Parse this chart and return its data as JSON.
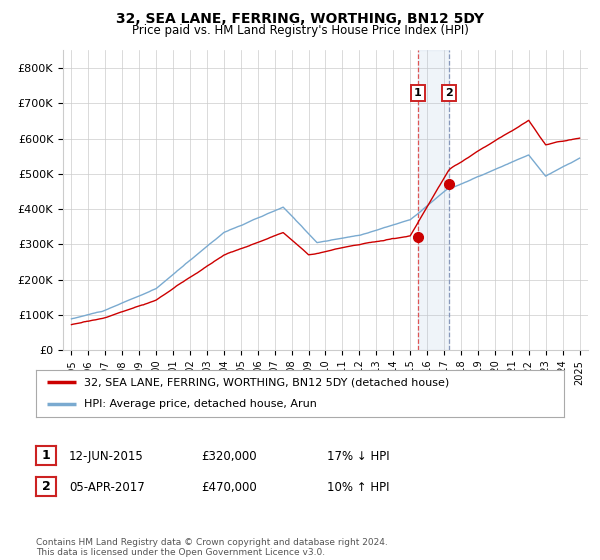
{
  "title": "32, SEA LANE, FERRING, WORTHING, BN12 5DY",
  "subtitle": "Price paid vs. HM Land Registry's House Price Index (HPI)",
  "ylim": [
    0,
    850000
  ],
  "yticks": [
    0,
    100000,
    200000,
    300000,
    400000,
    500000,
    600000,
    700000,
    800000
  ],
  "ytick_labels": [
    "£0",
    "£100K",
    "£200K",
    "£300K",
    "£400K",
    "£500K",
    "£600K",
    "£700K",
    "£800K"
  ],
  "hpi_color": "#7aaad0",
  "price_color": "#cc0000",
  "bg_color": "#ffffff",
  "grid_color": "#cccccc",
  "t1_x": 2015.45,
  "t1_y": 320000,
  "t2_x": 2017.27,
  "t2_y": 470000,
  "highlight_xmin": 2015.45,
  "highlight_xmax": 2017.27,
  "xlim": [
    1994.5,
    2025.5
  ],
  "xticks": [
    1995,
    1996,
    1997,
    1998,
    1999,
    2000,
    2001,
    2002,
    2003,
    2004,
    2005,
    2006,
    2007,
    2008,
    2009,
    2010,
    2011,
    2012,
    2013,
    2014,
    2015,
    2016,
    2017,
    2018,
    2019,
    2020,
    2021,
    2022,
    2023,
    2024,
    2025
  ],
  "legend_label1": "32, SEA LANE, FERRING, WORTHING, BN12 5DY (detached house)",
  "legend_label2": "HPI: Average price, detached house, Arun",
  "footnote": "Contains HM Land Registry data © Crown copyright and database right 2024.\nThis data is licensed under the Open Government Licence v3.0.",
  "table_rows": [
    [
      "1",
      "12-JUN-2015",
      "£320,000",
      "17% ↓ HPI"
    ],
    [
      "2",
      "05-APR-2017",
      "£470,000",
      "10% ↑ HPI"
    ]
  ]
}
